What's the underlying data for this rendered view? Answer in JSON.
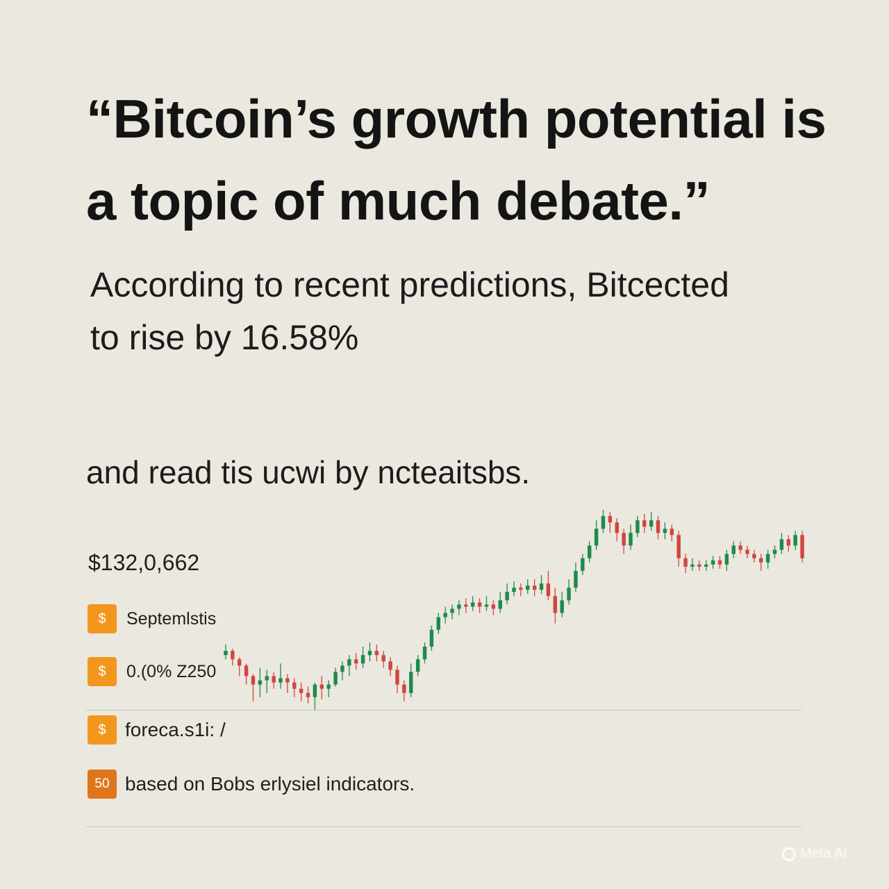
{
  "headline": {
    "line1": "“Bitcoin’s growth potential is",
    "line2": "a topic of much debate.”"
  },
  "subtext": {
    "line1": "According to recent predictions, Bitcected",
    "line2": "to rise by 16.58%"
  },
  "line3": "and read tis ucwi by ncteaitsbs.",
  "price_label": "$132,0,662",
  "legend": [
    {
      "badge": "$",
      "text": "Septemlstis"
    },
    {
      "badge": "$",
      "text": "0.(0% Z250"
    },
    {
      "badge": "$",
      "text": "foreca.s1i: /"
    },
    {
      "badge": "50",
      "text": "based on Bobs erlysiel indicators."
    }
  ],
  "watermark": "Meta AI",
  "colors": {
    "background": "#ebe8df",
    "up": "#1f8a4c",
    "down": "#d0463f",
    "badge": "#f2961e"
  },
  "chart_data": {
    "type": "candlestick",
    "title": "",
    "xlabel": "",
    "ylabel": "",
    "ylim": [
      0,
      100
    ],
    "grid": false,
    "legend": "none",
    "candles": [
      {
        "o": 40,
        "c": 42,
        "h": 45,
        "l": 38
      },
      {
        "o": 42,
        "c": 38,
        "h": 43,
        "l": 35
      },
      {
        "o": 38,
        "c": 35,
        "h": 39,
        "l": 30
      },
      {
        "o": 35,
        "c": 30,
        "h": 36,
        "l": 26
      },
      {
        "o": 30,
        "c": 26,
        "h": 31,
        "l": 18
      },
      {
        "o": 26,
        "c": 28,
        "h": 34,
        "l": 20
      },
      {
        "o": 28,
        "c": 30,
        "h": 33,
        "l": 22
      },
      {
        "o": 30,
        "c": 27,
        "h": 32,
        "l": 24
      },
      {
        "o": 27,
        "c": 29,
        "h": 36,
        "l": 24
      },
      {
        "o": 29,
        "c": 27,
        "h": 31,
        "l": 22
      },
      {
        "o": 27,
        "c": 24,
        "h": 29,
        "l": 20
      },
      {
        "o": 24,
        "c": 22,
        "h": 27,
        "l": 18
      },
      {
        "o": 22,
        "c": 20,
        "h": 25,
        "l": 17
      },
      {
        "o": 20,
        "c": 26,
        "h": 27,
        "l": 14
      },
      {
        "o": 26,
        "c": 24,
        "h": 30,
        "l": 19
      },
      {
        "o": 24,
        "c": 26,
        "h": 28,
        "l": 20
      },
      {
        "o": 26,
        "c": 32,
        "h": 34,
        "l": 25
      },
      {
        "o": 32,
        "c": 35,
        "h": 37,
        "l": 28
      },
      {
        "o": 35,
        "c": 38,
        "h": 40,
        "l": 30
      },
      {
        "o": 38,
        "c": 36,
        "h": 41,
        "l": 33
      },
      {
        "o": 36,
        "c": 40,
        "h": 44,
        "l": 34
      },
      {
        "o": 40,
        "c": 42,
        "h": 46,
        "l": 37
      },
      {
        "o": 42,
        "c": 40,
        "h": 45,
        "l": 37
      },
      {
        "o": 40,
        "c": 37,
        "h": 42,
        "l": 34
      },
      {
        "o": 37,
        "c": 33,
        "h": 39,
        "l": 30
      },
      {
        "o": 33,
        "c": 26,
        "h": 35,
        "l": 22
      },
      {
        "o": 26,
        "c": 22,
        "h": 28,
        "l": 18
      },
      {
        "o": 22,
        "c": 32,
        "h": 36,
        "l": 20
      },
      {
        "o": 32,
        "c": 38,
        "h": 40,
        "l": 30
      },
      {
        "o": 38,
        "c": 44,
        "h": 46,
        "l": 36
      },
      {
        "o": 44,
        "c": 52,
        "h": 54,
        "l": 42
      },
      {
        "o": 52,
        "c": 58,
        "h": 60,
        "l": 50
      },
      {
        "o": 58,
        "c": 60,
        "h": 63,
        "l": 55
      },
      {
        "o": 60,
        "c": 62,
        "h": 64,
        "l": 57
      },
      {
        "o": 62,
        "c": 64,
        "h": 66,
        "l": 59
      },
      {
        "o": 64,
        "c": 63,
        "h": 67,
        "l": 60
      },
      {
        "o": 63,
        "c": 65,
        "h": 68,
        "l": 61
      },
      {
        "o": 65,
        "c": 63,
        "h": 67,
        "l": 60
      },
      {
        "o": 63,
        "c": 64,
        "h": 68,
        "l": 61
      },
      {
        "o": 64,
        "c": 62,
        "h": 66,
        "l": 59
      },
      {
        "o": 62,
        "c": 66,
        "h": 70,
        "l": 60
      },
      {
        "o": 66,
        "c": 70,
        "h": 74,
        "l": 64
      },
      {
        "o": 70,
        "c": 72,
        "h": 75,
        "l": 68
      },
      {
        "o": 72,
        "c": 71,
        "h": 74,
        "l": 68
      },
      {
        "o": 71,
        "c": 73,
        "h": 76,
        "l": 69
      },
      {
        "o": 73,
        "c": 71,
        "h": 76,
        "l": 68
      },
      {
        "o": 71,
        "c": 74,
        "h": 78,
        "l": 69
      },
      {
        "o": 74,
        "c": 68,
        "h": 80,
        "l": 66
      },
      {
        "o": 68,
        "c": 60,
        "h": 72,
        "l": 55
      },
      {
        "o": 60,
        "c": 66,
        "h": 70,
        "l": 58
      },
      {
        "o": 66,
        "c": 72,
        "h": 76,
        "l": 64
      },
      {
        "o": 72,
        "c": 80,
        "h": 84,
        "l": 70
      },
      {
        "o": 80,
        "c": 86,
        "h": 88,
        "l": 78
      },
      {
        "o": 86,
        "c": 92,
        "h": 94,
        "l": 84
      },
      {
        "o": 92,
        "c": 100,
        "h": 104,
        "l": 90
      },
      {
        "o": 100,
        "c": 106,
        "h": 109,
        "l": 98
      },
      {
        "o": 106,
        "c": 103,
        "h": 108,
        "l": 98
      },
      {
        "o": 103,
        "c": 98,
        "h": 105,
        "l": 94
      },
      {
        "o": 98,
        "c": 92,
        "h": 100,
        "l": 88
      },
      {
        "o": 92,
        "c": 98,
        "h": 102,
        "l": 90
      },
      {
        "o": 98,
        "c": 104,
        "h": 106,
        "l": 96
      },
      {
        "o": 104,
        "c": 101,
        "h": 107,
        "l": 98
      },
      {
        "o": 101,
        "c": 104,
        "h": 108,
        "l": 99
      },
      {
        "o": 104,
        "c": 98,
        "h": 106,
        "l": 95
      },
      {
        "o": 98,
        "c": 100,
        "h": 103,
        "l": 95
      },
      {
        "o": 100,
        "c": 97,
        "h": 102,
        "l": 94
      },
      {
        "o": 97,
        "c": 86,
        "h": 99,
        "l": 82
      },
      {
        "o": 86,
        "c": 82,
        "h": 88,
        "l": 79
      },
      {
        "o": 82,
        "c": 83,
        "h": 86,
        "l": 80
      },
      {
        "o": 83,
        "c": 82,
        "h": 85,
        "l": 80
      },
      {
        "o": 82,
        "c": 83,
        "h": 85,
        "l": 80
      },
      {
        "o": 83,
        "c": 85,
        "h": 87,
        "l": 81
      },
      {
        "o": 85,
        "c": 83,
        "h": 87,
        "l": 81
      },
      {
        "o": 83,
        "c": 88,
        "h": 90,
        "l": 80
      },
      {
        "o": 88,
        "c": 92,
        "h": 94,
        "l": 86
      },
      {
        "o": 92,
        "c": 90,
        "h": 94,
        "l": 88
      },
      {
        "o": 90,
        "c": 88,
        "h": 92,
        "l": 86
      },
      {
        "o": 88,
        "c": 86,
        "h": 90,
        "l": 84
      },
      {
        "o": 86,
        "c": 84,
        "h": 88,
        "l": 80
      },
      {
        "o": 84,
        "c": 88,
        "h": 90,
        "l": 81
      },
      {
        "o": 88,
        "c": 90,
        "h": 92,
        "l": 86
      },
      {
        "o": 90,
        "c": 95,
        "h": 98,
        "l": 88
      },
      {
        "o": 95,
        "c": 92,
        "h": 97,
        "l": 89
      },
      {
        "o": 92,
        "c": 97,
        "h": 99,
        "l": 90
      },
      {
        "o": 97,
        "c": 86,
        "h": 99,
        "l": 84
      }
    ]
  }
}
